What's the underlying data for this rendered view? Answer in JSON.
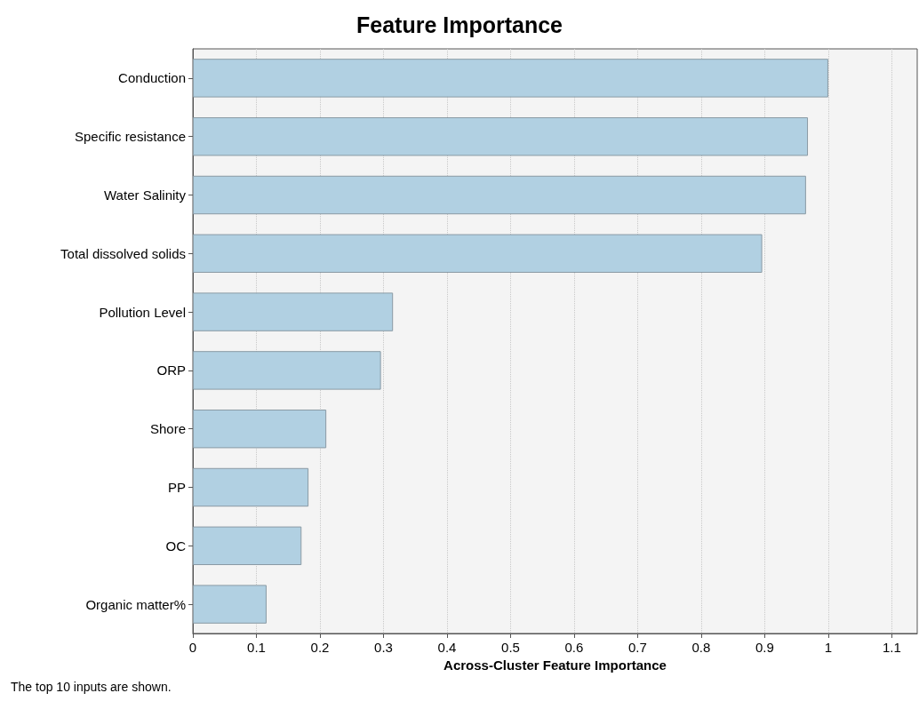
{
  "chart_data": {
    "type": "bar",
    "orientation": "horizontal",
    "title": "Feature Importance",
    "xlabel": "Across-Cluster Feature Importance",
    "categories": [
      "Conduction",
      "Specific resistance",
      "Water Salinity",
      "Total dissolved solids",
      "Pollution Level",
      "ORP",
      "Shore",
      "PP",
      "OC",
      "Organic matter%"
    ],
    "values": [
      1.0,
      0.968,
      0.965,
      0.896,
      0.315,
      0.296,
      0.21,
      0.182,
      0.171,
      0.116
    ],
    "color": "#b1d0e2",
    "xlim": [
      0,
      1.14
    ],
    "xticks": [
      0,
      0.1,
      0.2,
      0.3,
      0.4,
      0.5,
      0.6,
      0.7,
      0.8,
      0.9,
      1,
      1.1
    ],
    "grid": "x",
    "annotations": [
      "The top 10 inputs are shown."
    ]
  }
}
